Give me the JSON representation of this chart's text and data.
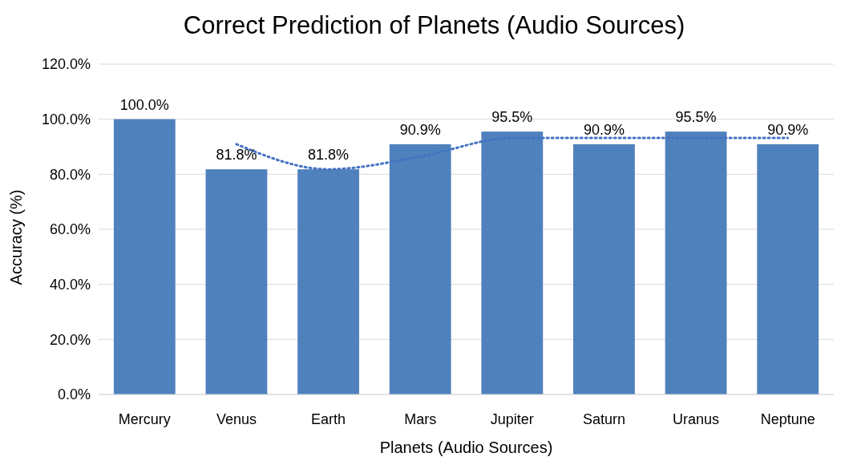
{
  "chart_data": {
    "type": "bar",
    "title": "Correct Prediction of Planets (Audio Sources)",
    "xlabel": "Planets (Audio Sources)",
    "ylabel": "Accuracy (%)",
    "categories": [
      "Mercury",
      "Venus",
      "Earth",
      "Mars",
      "Jupiter",
      "Saturn",
      "Uranus",
      "Neptune"
    ],
    "series": [
      {
        "color": "#4f81bd",
        "values": [
          100,
          81.8,
          81.8,
          90.9,
          95.5,
          90.9,
          95.5,
          90.9
        ],
        "value_labels": [
          "100.0%",
          "81.8%",
          "81.8%",
          "90.9%",
          "95.5%",
          "90.9%",
          "95.5%",
          "90.9%"
        ]
      },
      {
        "type": "line",
        "color": "#4472c4",
        "line_style": "dotted",
        "marker": "none",
        "values": [
          null,
          90.9,
          81.8,
          86.4,
          93.2,
          93.2,
          93.2,
          93.2
        ]
      }
    ],
    "ylim": [
      0,
      120
    ],
    "yticks": [
      {
        "value": 0,
        "label": "0.0%"
      },
      {
        "value": 20,
        "label": "20.0%"
      },
      {
        "value": 40,
        "label": "40.0%"
      },
      {
        "value": 60,
        "label": "60.0%"
      },
      {
        "value": 80,
        "label": "80.0%"
      },
      {
        "value": 100,
        "label": "100.0%"
      },
      {
        "value": 120,
        "label": "120.0%"
      }
    ],
    "grid": "y"
  }
}
